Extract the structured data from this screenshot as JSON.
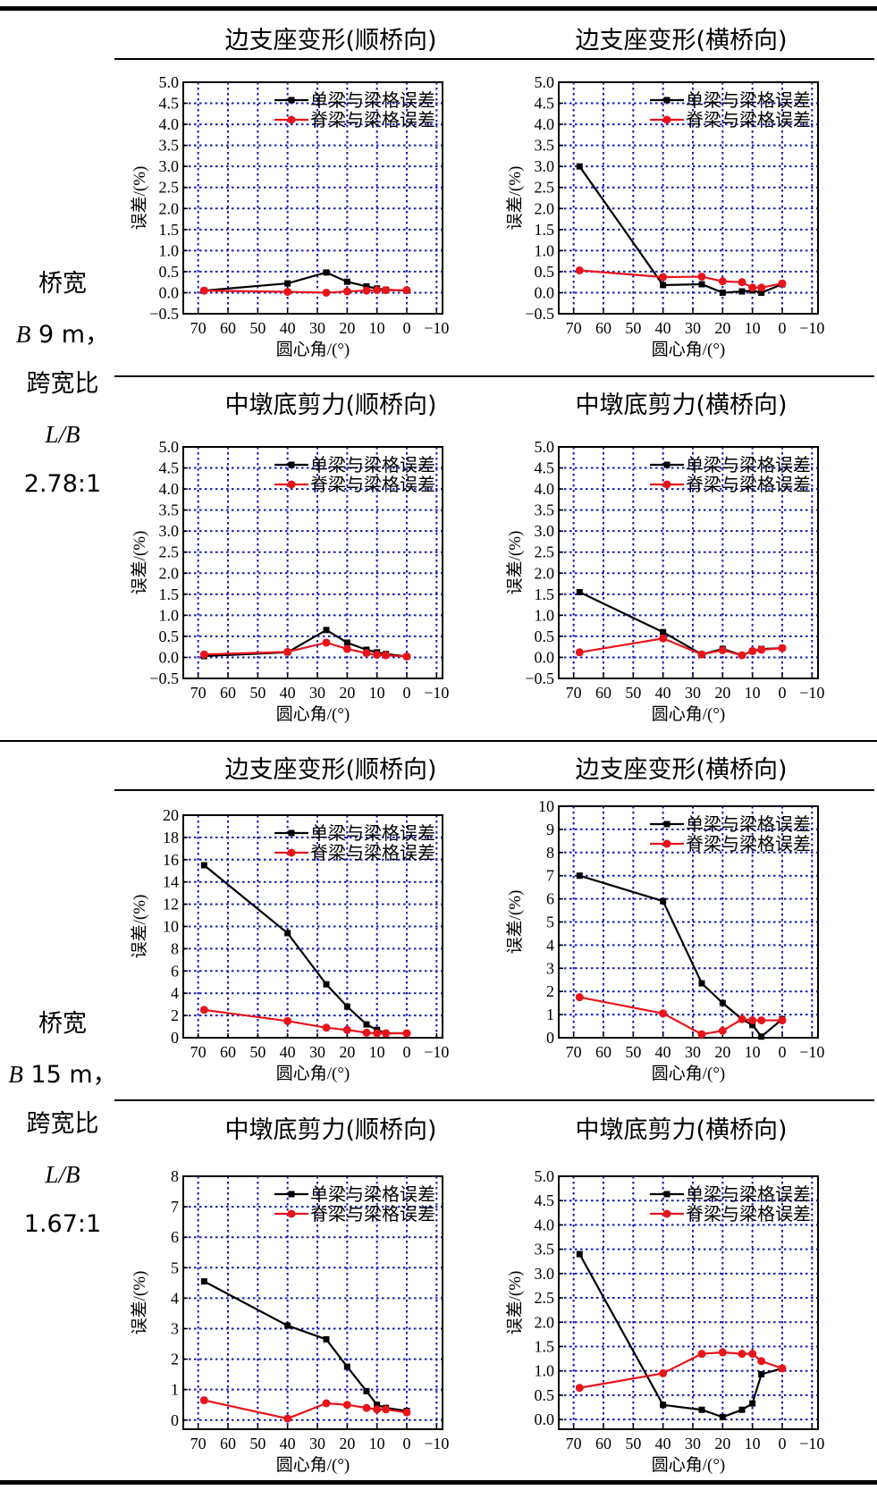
{
  "groups": [
    {
      "line1": "桥宽",
      "b_symbol": "B",
      "b_value": "9 m，",
      "line3": "跨宽比",
      "ratio_symbol": "L/B",
      "ratio_value": "2.78:1"
    },
    {
      "line1": "桥宽",
      "b_symbol": "B",
      "b_value": "15 m，",
      "line3": "跨宽比",
      "ratio_symbol": "L/B",
      "ratio_value": "1.67:1"
    }
  ],
  "titles": [
    "边支座变形(顺桥向)",
    "边支座变形(横桥向)",
    "中墩底剪力(顺桥向)",
    "中墩底剪力(横桥向)",
    "边支座变形(顺桥向)",
    "边支座变形(横桥向)",
    "中墩底剪力(顺桥向)",
    "中墩底剪力(横桥向)"
  ],
  "colors": {
    "series1": "#000000",
    "series2": "#e8141b",
    "grid": "#1515b4"
  },
  "chart_data": [
    {
      "type": "line",
      "title": "边支座变形(顺桥向)",
      "xlabel": "圆心角/(°)",
      "ylabel": "误差/(%)",
      "xlim": [
        75,
        -12
      ],
      "ylim": [
        -0.5,
        5.0
      ],
      "xticks": [
        70,
        60,
        50,
        40,
        30,
        20,
        10,
        0,
        -10
      ],
      "xtick_labels": [
        "70",
        "60",
        "50",
        "40",
        "30",
        "20",
        "10",
        "0",
        "−10"
      ],
      "yticks": [
        -0.5,
        0.0,
        0.5,
        1.0,
        1.5,
        2.0,
        2.5,
        3.0,
        3.5,
        4.0,
        4.5,
        5.0
      ],
      "ytick_labels": [
        "−0.5",
        "0.0",
        "0.5",
        "1.0",
        "1.5",
        "2.0",
        "2.5",
        "3.0",
        "3.5",
        "4.0",
        "4.5",
        "5.0"
      ],
      "legend": "top-right",
      "series": [
        {
          "name": "单梁与梁格误差",
          "x": [
            68,
            40,
            27,
            20,
            13.5,
            10,
            7,
            0
          ],
          "values": [
            0.05,
            0.22,
            0.48,
            0.26,
            0.15,
            0.1,
            0.07,
            0.05
          ]
        },
        {
          "name": "脊梁与梁格误差",
          "x": [
            68,
            40,
            27,
            20,
            13.5,
            10,
            7,
            0
          ],
          "values": [
            0.05,
            0.02,
            0.0,
            0.03,
            0.05,
            0.06,
            0.06,
            0.06
          ]
        }
      ]
    },
    {
      "type": "line",
      "title": "边支座变形(横桥向)",
      "xlabel": "圆心角/(°)",
      "ylabel": "误差/(%)",
      "xlim": [
        75,
        -12
      ],
      "ylim": [
        -0.5,
        5.0
      ],
      "xticks": [
        70,
        60,
        50,
        40,
        30,
        20,
        10,
        0,
        -10
      ],
      "xtick_labels": [
        "70",
        "60",
        "50",
        "40",
        "30",
        "20",
        "10",
        "0",
        "−10"
      ],
      "yticks": [
        -0.5,
        0.0,
        0.5,
        1.0,
        1.5,
        2.0,
        2.5,
        3.0,
        3.5,
        4.0,
        4.5,
        5.0
      ],
      "ytick_labels": [
        "−0.5",
        "0.0",
        "0.5",
        "1.0",
        "1.5",
        "2.0",
        "2.5",
        "3.0",
        "3.5",
        "4.0",
        "4.5",
        "5.0"
      ],
      "legend": "top-right",
      "series": [
        {
          "name": "单梁与梁格误差",
          "x": [
            68,
            40,
            27,
            20,
            13.5,
            10,
            7,
            0
          ],
          "values": [
            3.0,
            0.18,
            0.2,
            0.0,
            0.03,
            0.05,
            0.0,
            0.2
          ]
        },
        {
          "name": "脊梁与梁格误差",
          "x": [
            68,
            40,
            27,
            20,
            13.5,
            10,
            7,
            0
          ],
          "values": [
            0.53,
            0.37,
            0.38,
            0.27,
            0.25,
            0.12,
            0.12,
            0.22
          ]
        }
      ]
    },
    {
      "type": "line",
      "title": "中墩底剪力(顺桥向)",
      "xlabel": "圆心角/(°)",
      "ylabel": "误差/(%)",
      "xlim": [
        75,
        -12
      ],
      "ylim": [
        -0.5,
        5.0
      ],
      "xticks": [
        70,
        60,
        50,
        40,
        30,
        20,
        10,
        0,
        -10
      ],
      "xtick_labels": [
        "70",
        "60",
        "50",
        "40",
        "30",
        "20",
        "10",
        "0",
        "−10"
      ],
      "yticks": [
        -0.5,
        0.0,
        0.5,
        1.0,
        1.5,
        2.0,
        2.5,
        3.0,
        3.5,
        4.0,
        4.5,
        5.0
      ],
      "ytick_labels": [
        "−0.5",
        "0.0",
        "0.5",
        "1.0",
        "1.5",
        "2.0",
        "2.5",
        "3.0",
        "3.5",
        "4.0",
        "4.5",
        "5.0"
      ],
      "legend": "top-right",
      "series": [
        {
          "name": "单梁与梁格误差",
          "x": [
            68,
            40,
            27,
            20,
            13.5,
            10,
            7,
            0
          ],
          "values": [
            0.03,
            0.12,
            0.65,
            0.35,
            0.18,
            0.12,
            0.08,
            0.02
          ]
        },
        {
          "name": "脊梁与梁格误差",
          "x": [
            68,
            40,
            27,
            20,
            13.5,
            10,
            7,
            0
          ],
          "values": [
            0.07,
            0.13,
            0.35,
            0.2,
            0.1,
            0.06,
            0.05,
            0.02
          ]
        }
      ]
    },
    {
      "type": "line",
      "title": "中墩底剪力(横桥向)",
      "xlabel": "圆心角/(°)",
      "ylabel": "误差/(%)",
      "xlim": [
        75,
        -12
      ],
      "ylim": [
        -0.5,
        5.0
      ],
      "xticks": [
        70,
        60,
        50,
        40,
        30,
        20,
        10,
        0,
        -10
      ],
      "xtick_labels": [
        "70",
        "60",
        "50",
        "40",
        "30",
        "20",
        "10",
        "0",
        "−10"
      ],
      "yticks": [
        -0.5,
        0.0,
        0.5,
        1.0,
        1.5,
        2.0,
        2.5,
        3.0,
        3.5,
        4.0,
        4.5,
        5.0
      ],
      "ytick_labels": [
        "−0.5",
        "0.0",
        "0.5",
        "1.0",
        "1.5",
        "2.0",
        "2.5",
        "3.0",
        "3.5",
        "4.0",
        "4.5",
        "5.0"
      ],
      "legend": "top-right",
      "series": [
        {
          "name": "单梁与梁格误差",
          "x": [
            68,
            40,
            27,
            20,
            13.5,
            10,
            7,
            0
          ],
          "values": [
            1.55,
            0.6,
            0.07,
            0.2,
            0.05,
            0.15,
            0.2,
            0.22
          ]
        },
        {
          "name": "脊梁与梁格误差",
          "x": [
            68,
            40,
            27,
            20,
            13.5,
            10,
            7,
            0
          ],
          "values": [
            0.12,
            0.45,
            0.07,
            0.17,
            0.05,
            0.15,
            0.18,
            0.22
          ]
        }
      ]
    },
    {
      "type": "line",
      "title": "边支座变形(顺桥向)",
      "xlabel": "圆心角/(°)",
      "ylabel": "误差/(%)",
      "xlim": [
        75,
        -12
      ],
      "ylim": [
        0,
        20
      ],
      "xticks": [
        70,
        60,
        50,
        40,
        30,
        20,
        10,
        0,
        -10
      ],
      "xtick_labels": [
        "70",
        "60",
        "50",
        "40",
        "30",
        "20",
        "10",
        "0",
        "−10"
      ],
      "yticks": [
        0,
        2,
        4,
        6,
        8,
        10,
        12,
        14,
        16,
        18,
        20
      ],
      "ytick_labels": [
        "0",
        "2",
        "4",
        "6",
        "8",
        "10",
        "12",
        "14",
        "16",
        "18",
        "20"
      ],
      "legend": "top-right",
      "series": [
        {
          "name": "单梁与梁格误差",
          "x": [
            68,
            40,
            27,
            20,
            13.5,
            10,
            7,
            0
          ],
          "values": [
            15.5,
            9.4,
            4.8,
            2.8,
            1.2,
            0.7,
            0.4,
            0.4
          ]
        },
        {
          "name": "脊梁与梁格误差",
          "x": [
            68,
            40,
            27,
            20,
            13.5,
            10,
            7,
            0
          ],
          "values": [
            2.5,
            1.5,
            0.9,
            0.7,
            0.45,
            0.4,
            0.4,
            0.4
          ]
        }
      ]
    },
    {
      "type": "line",
      "title": "边支座变形(横桥向)",
      "xlabel": "圆心角/(°)",
      "ylabel": "误差/(%)",
      "xlim": [
        75,
        -12
      ],
      "ylim": [
        0,
        10
      ],
      "xticks": [
        70,
        60,
        50,
        40,
        30,
        20,
        10,
        0,
        -10
      ],
      "xtick_labels": [
        "70",
        "60",
        "50",
        "40",
        "30",
        "20",
        "10",
        "0",
        "−10"
      ],
      "yticks": [
        0,
        1,
        2,
        3,
        4,
        5,
        6,
        7,
        8,
        9,
        10
      ],
      "ytick_labels": [
        "0",
        "1",
        "2",
        "3",
        "4",
        "5",
        "6",
        "7",
        "8",
        "9",
        "10"
      ],
      "legend": "top-right",
      "series": [
        {
          "name": "单梁与梁格误差",
          "x": [
            68,
            40,
            27,
            20,
            13.5,
            10,
            7,
            0
          ],
          "values": [
            7.0,
            5.9,
            2.35,
            1.5,
            0.8,
            0.55,
            0.05,
            0.8
          ]
        },
        {
          "name": "脊梁与梁格误差",
          "x": [
            68,
            40,
            27,
            20,
            13.5,
            10,
            7,
            0
          ],
          "values": [
            1.75,
            1.05,
            0.15,
            0.3,
            0.8,
            0.75,
            0.75,
            0.75
          ]
        }
      ]
    },
    {
      "type": "line",
      "title": "中墩底剪力(顺桥向)",
      "xlabel": "圆心角/(°)",
      "ylabel": "误差/(%)",
      "xlim": [
        75,
        -12
      ],
      "ylim": [
        -0.3,
        8
      ],
      "xticks": [
        70,
        60,
        50,
        40,
        30,
        20,
        10,
        0,
        -10
      ],
      "xtick_labels": [
        "70",
        "60",
        "50",
        "40",
        "30",
        "20",
        "10",
        "0",
        "−10"
      ],
      "yticks": [
        0,
        1,
        2,
        3,
        4,
        5,
        6,
        7,
        8
      ],
      "ytick_labels": [
        "0",
        "1",
        "2",
        "3",
        "4",
        "5",
        "6",
        "7",
        "8"
      ],
      "legend": "top-right",
      "series": [
        {
          "name": "单梁与梁格误差",
          "x": [
            68,
            40,
            27,
            20,
            13.5,
            10,
            7,
            0
          ],
          "values": [
            4.55,
            3.1,
            2.65,
            1.75,
            0.95,
            0.5,
            0.4,
            0.3
          ]
        },
        {
          "name": "脊梁与梁格误差",
          "x": [
            68,
            40,
            27,
            20,
            13.5,
            10,
            7,
            0
          ],
          "values": [
            0.65,
            0.05,
            0.55,
            0.5,
            0.4,
            0.35,
            0.35,
            0.25
          ]
        }
      ]
    },
    {
      "type": "line",
      "title": "中墩底剪力(横桥向)",
      "xlabel": "圆心角/(°)",
      "ylabel": "误差/(%)",
      "xlim": [
        75,
        -12
      ],
      "ylim": [
        -0.2,
        5.0
      ],
      "xticks": [
        70,
        60,
        50,
        40,
        30,
        20,
        10,
        0,
        -10
      ],
      "xtick_labels": [
        "70",
        "60",
        "50",
        "40",
        "30",
        "20",
        "10",
        "0",
        "−10"
      ],
      "yticks": [
        0.0,
        0.5,
        1.0,
        1.5,
        2.0,
        2.5,
        3.0,
        3.5,
        4.0,
        4.5,
        5.0
      ],
      "ytick_labels": [
        "0.0",
        "0.5",
        "1.0",
        "1.5",
        "2.0",
        "2.5",
        "3.0",
        "3.5",
        "4.0",
        "4.5",
        "5.0"
      ],
      "legend": "top-right",
      "series": [
        {
          "name": "单梁与梁格误差",
          "x": [
            68,
            40,
            27,
            20,
            13.5,
            10,
            7,
            0
          ],
          "values": [
            3.4,
            0.3,
            0.2,
            0.05,
            0.2,
            0.33,
            0.93,
            1.05
          ]
        },
        {
          "name": "脊梁与梁格误差",
          "x": [
            68,
            40,
            27,
            20,
            13.5,
            10,
            7,
            0
          ],
          "values": [
            0.65,
            0.95,
            1.35,
            1.38,
            1.35,
            1.35,
            1.2,
            1.05
          ]
        }
      ]
    }
  ]
}
